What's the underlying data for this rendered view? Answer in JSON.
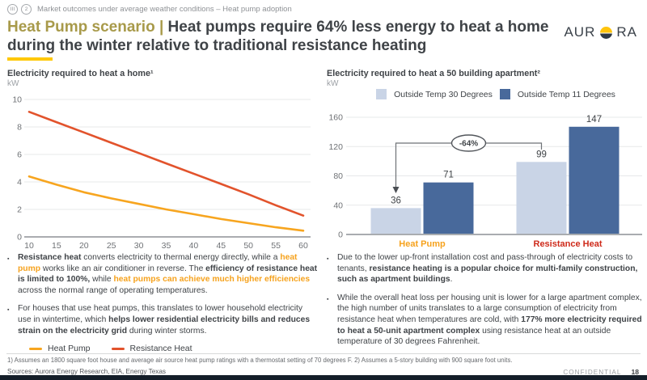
{
  "colors": {
    "orange": "#F6A21D",
    "red": "#CE2A1A",
    "gold": "#A89A4A",
    "yellow_accent": "#FFC800",
    "dark_text": "#3F4347",
    "light_blue": "#C9D4E6",
    "dark_blue": "#48699B",
    "navy_bar": "#141E29"
  },
  "breadcrumb": {
    "badge_roman": "III",
    "badge_number": "2",
    "text": "Market outcomes under average weather conditions – Heat pump adoption"
  },
  "title": {
    "highlight": "Heat Pump scenario",
    "separator": "|",
    "rest": "Heat pumps require 64% less energy to heat a home during the winter relative to traditional resistance heating"
  },
  "logo": {
    "left": "AUR",
    "right": "RA",
    "sun": "sun-icon"
  },
  "left_panel": {
    "chart_title": "Electricity required to heat a home¹",
    "unit": "kW",
    "bullets": [
      [
        {
          "t": "Resistance heat",
          "b": true
        },
        {
          "t": " converts electricity to thermal energy directly, while a "
        },
        {
          "t": "heat pump",
          "b": true,
          "c": "orange"
        },
        {
          "t": " works like an air conditioner in reverse. The "
        },
        {
          "t": "efficiency of resistance heat is limited to 100%,",
          "b": true
        },
        {
          "t": " while "
        },
        {
          "t": "heat pumps can achieve much higher efficiencies",
          "b": true,
          "c": "orange"
        },
        {
          "t": " across the normal range of operating temperatures."
        }
      ],
      [
        {
          "t": "For houses that use heat pumps, this translates to lower household electricity use in wintertime, which "
        },
        {
          "t": "helps lower residential electricity bills and reduces strain on the electricity grid",
          "b": true
        },
        {
          "t": " during winter storms."
        }
      ]
    ]
  },
  "right_panel": {
    "chart_title": "Electricity required to heat a 50 building apartment²",
    "unit": "kW",
    "bullets": [
      [
        {
          "t": "Due to the lower up-front installation cost and pass-through of electricity costs to tenants, "
        },
        {
          "t": "resistance heating is a popular choice for multi-family construction, such as apartment buildings",
          "b": true
        },
        {
          "t": "."
        }
      ],
      [
        {
          "t": "While the overall heat loss per housing unit is lower for a large apartment complex, the high number of units translates to a large consumption of electricity from resistance heat when temperatures are cold, with "
        },
        {
          "t": "177% more electricity required to heat a 50-unit apartment complex",
          "b": true
        },
        {
          "t": " using resistance heat at an outside temperature of 30 degrees Fahrenheit."
        }
      ]
    ]
  },
  "chart_data": [
    {
      "type": "line",
      "title": "Electricity required to heat a home¹",
      "ylabel": "kW",
      "x": [
        10,
        15,
        20,
        25,
        30,
        35,
        40,
        45,
        50,
        55,
        60
      ],
      "series": [
        {
          "name": "Heat Pump",
          "color": "#F7A51F",
          "values": [
            4.4,
            3.8,
            3.25,
            2.8,
            2.4,
            2.0,
            1.65,
            1.3,
            1.0,
            0.7,
            0.45
          ]
        },
        {
          "name": "Resistance Heat",
          "color": "#E2532C",
          "values": [
            9.1,
            8.35,
            7.6,
            6.85,
            6.1,
            5.35,
            4.6,
            3.85,
            3.1,
            2.3,
            1.55
          ]
        }
      ],
      "ylim": [
        0,
        10
      ],
      "yticks": [
        0,
        2,
        4,
        6,
        8,
        10
      ],
      "grid": true,
      "legend_position": "bottom-left"
    },
    {
      "type": "bar",
      "title": "Electricity required to heat a 50 building apartment²",
      "ylabel": "kW",
      "categories": [
        "Heat Pump",
        "Resistance Heat"
      ],
      "category_colors": [
        "#F6A21D",
        "#CE2A1A"
      ],
      "series": [
        {
          "name": "Outside Temp 30 Degrees",
          "color": "#C9D4E6",
          "values": [
            36,
            99
          ]
        },
        {
          "name": "Outside Temp 11 Degrees",
          "color": "#48699B",
          "values": [
            71,
            147
          ]
        }
      ],
      "ylim": [
        0,
        160
      ],
      "yticks": [
        0,
        40,
        80,
        120,
        160
      ],
      "grid": true,
      "legend_position": "top",
      "annotation": {
        "label": "-64%",
        "from_bar": "Heat Pump / Outside Temp 30 Degrees",
        "to_bar": "Resistance Heat / Outside Temp 30 Degrees"
      }
    }
  ],
  "footer": {
    "footnote": "1) Assumes an 1800 square foot house and average air source heat pump ratings with a thermostat setting of 70 degrees F. 2) Assumes a 5-story building with 900 square foot units.",
    "sources": "Sources: Aurora Energy Research, EIA, Energy Texas",
    "confidential": "CONFIDENTIAL",
    "page_number": "18"
  },
  "bullet_glyph": "▪"
}
